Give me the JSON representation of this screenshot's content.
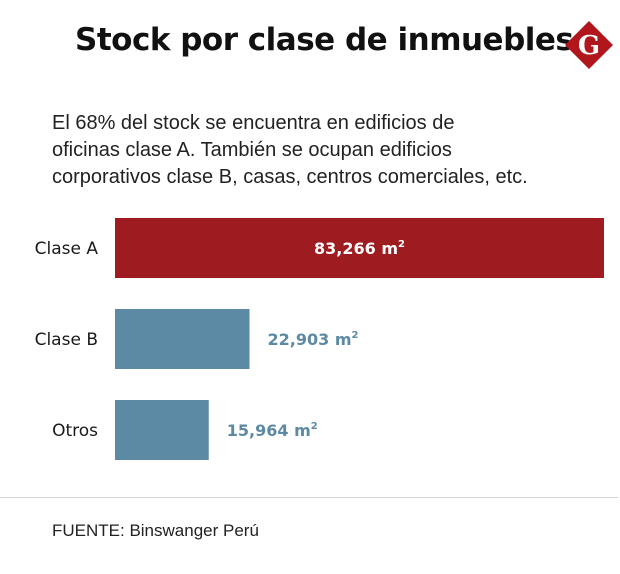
{
  "header": {
    "title": "Stock por clase de inmuebles",
    "logo_letter": "G"
  },
  "subtitle_lines": [
    "El 68% del stock se encuentra en edificios de",
    "oficinas clase A. También se ocupan edificios",
    "corporativos clase B, casas, centros comerciales, etc."
  ],
  "chart_data": {
    "type": "bar",
    "orientation": "horizontal",
    "categories": [
      "Clase A",
      "Clase B",
      "Otros"
    ],
    "values": [
      83266,
      22903,
      15964
    ],
    "value_labels": [
      "83,266",
      "22,903",
      "15,964"
    ],
    "unit": "m",
    "unit_superscript": "2",
    "colors": [
      "#9e1b20",
      "#5c89a3",
      "#5c89a3"
    ],
    "xlim": [
      0,
      83266
    ],
    "grid": false,
    "legend": "none"
  },
  "colors": {
    "accent_red": "#9e1b20",
    "steel_blue": "#5c89a3",
    "logo_red": "#b0161c"
  },
  "footer": {
    "source": "FUENTE: Binswanger Perú"
  }
}
